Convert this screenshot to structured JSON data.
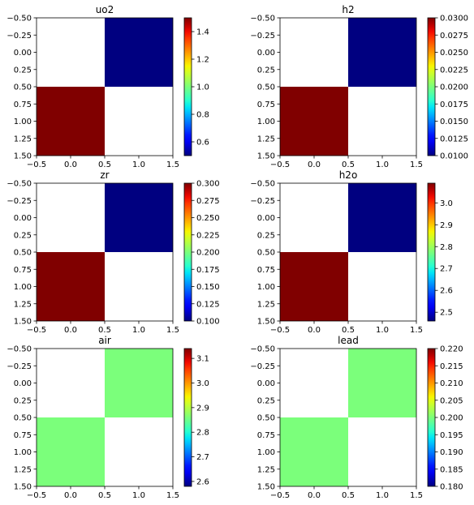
{
  "figure": {
    "background": "#ffffff",
    "colormap": "jet",
    "nan_color": "#ffffff"
  },
  "chart_data": [
    {
      "type": "heatmap",
      "title": "uo2",
      "x_ticks": [
        "−0.5",
        "0.0",
        "0.5",
        "1.0",
        "1.5"
      ],
      "y_ticks": [
        "−0.50",
        "−0.25",
        "0.00",
        "0.25",
        "0.50",
        "0.75",
        "1.00",
        "1.25",
        "1.50"
      ],
      "xlim": [
        -0.5,
        1.5
      ],
      "ylim": [
        1.5,
        -0.5
      ],
      "grid": [
        [
          null,
          0.5
        ],
        [
          1.5,
          null
        ]
      ],
      "colorbar": {
        "vmin": 0.5,
        "vmax": 1.5,
        "ticks": [
          0.6,
          0.8,
          1.0,
          1.2,
          1.4
        ],
        "labels": [
          "0.6",
          "0.8",
          "1.0",
          "1.2",
          "1.4"
        ]
      }
    },
    {
      "type": "heatmap",
      "title": "h2",
      "x_ticks": [
        "−0.5",
        "0.0",
        "0.5",
        "1.0",
        "1.5"
      ],
      "y_ticks": [
        "−0.50",
        "−0.25",
        "0.00",
        "0.25",
        "0.50",
        "0.75",
        "1.00",
        "1.25",
        "1.50"
      ],
      "xlim": [
        -0.5,
        1.5
      ],
      "ylim": [
        1.5,
        -0.5
      ],
      "grid": [
        [
          null,
          0.01
        ],
        [
          0.03,
          null
        ]
      ],
      "colorbar": {
        "vmin": 0.01,
        "vmax": 0.03,
        "ticks": [
          0.01,
          0.0125,
          0.015,
          0.0175,
          0.02,
          0.0225,
          0.025,
          0.0275,
          0.03
        ],
        "labels": [
          "0.0100",
          "0.0125",
          "0.0150",
          "0.0175",
          "0.0200",
          "0.0225",
          "0.0250",
          "0.0275",
          "0.0300"
        ]
      }
    },
    {
      "type": "heatmap",
      "title": "zr",
      "x_ticks": [
        "−0.5",
        "0.0",
        "0.5",
        "1.0",
        "1.5"
      ],
      "y_ticks": [
        "−0.50",
        "−0.25",
        "0.00",
        "0.25",
        "0.50",
        "0.75",
        "1.00",
        "1.25",
        "1.50"
      ],
      "xlim": [
        -0.5,
        1.5
      ],
      "ylim": [
        1.5,
        -0.5
      ],
      "grid": [
        [
          null,
          0.1
        ],
        [
          0.3,
          null
        ]
      ],
      "colorbar": {
        "vmin": 0.1,
        "vmax": 0.3,
        "ticks": [
          0.1,
          0.125,
          0.15,
          0.175,
          0.2,
          0.225,
          0.25,
          0.275,
          0.3
        ],
        "labels": [
          "0.100",
          "0.125",
          "0.150",
          "0.175",
          "0.200",
          "0.225",
          "0.250",
          "0.275",
          "0.300"
        ]
      }
    },
    {
      "type": "heatmap",
      "title": "h2o",
      "x_ticks": [
        "−0.5",
        "0.0",
        "0.5",
        "1.0",
        "1.5"
      ],
      "y_ticks": [
        "−0.50",
        "−0.25",
        "0.00",
        "0.25",
        "0.50",
        "0.75",
        "1.00",
        "1.25",
        "1.50"
      ],
      "xlim": [
        -0.5,
        1.5
      ],
      "ylim": [
        1.5,
        -0.5
      ],
      "grid": [
        [
          null,
          2.46
        ],
        [
          3.09,
          null
        ]
      ],
      "colorbar": {
        "vmin": 2.46,
        "vmax": 3.09,
        "ticks": [
          2.5,
          2.6,
          2.7,
          2.8,
          2.9,
          3.0
        ],
        "labels": [
          "2.5",
          "2.6",
          "2.7",
          "2.8",
          "2.9",
          "3.0"
        ]
      }
    },
    {
      "type": "heatmap",
      "title": "air",
      "x_ticks": [
        "−0.5",
        "0.0",
        "0.5",
        "1.0",
        "1.5"
      ],
      "y_ticks": [
        "−0.50",
        "−0.25",
        "0.00",
        "0.25",
        "0.50",
        "0.75",
        "1.00",
        "1.25",
        "1.50"
      ],
      "xlim": [
        -0.5,
        1.5
      ],
      "ylim": [
        1.5,
        -0.5
      ],
      "grid": [
        [
          null,
          2.86
        ],
        [
          2.86,
          null
        ]
      ],
      "colorbar": {
        "vmin": 2.58,
        "vmax": 3.14,
        "ticks": [
          2.6,
          2.7,
          2.8,
          2.9,
          3.0,
          3.1
        ],
        "labels": [
          "2.6",
          "2.7",
          "2.8",
          "2.9",
          "3.0",
          "3.1"
        ]
      }
    },
    {
      "type": "heatmap",
      "title": "lead",
      "x_ticks": [
        "−0.5",
        "0.0",
        "0.5",
        "1.0",
        "1.5"
      ],
      "y_ticks": [
        "−0.50",
        "−0.25",
        "0.00",
        "0.25",
        "0.50",
        "0.75",
        "1.00",
        "1.25",
        "1.50"
      ],
      "xlim": [
        -0.5,
        1.5
      ],
      "ylim": [
        1.5,
        -0.5
      ],
      "grid": [
        [
          null,
          0.2
        ],
        [
          0.2,
          null
        ]
      ],
      "colorbar": {
        "vmin": 0.18,
        "vmax": 0.22,
        "ticks": [
          0.18,
          0.185,
          0.19,
          0.195,
          0.2,
          0.205,
          0.21,
          0.215,
          0.22
        ],
        "labels": [
          "0.180",
          "0.185",
          "0.190",
          "0.195",
          "0.200",
          "0.205",
          "0.210",
          "0.215",
          "0.220"
        ]
      }
    }
  ]
}
